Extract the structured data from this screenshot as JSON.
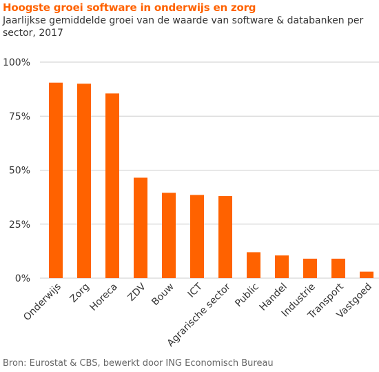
{
  "header": {
    "title": "Hoogste groei software in onderwijs en zorg",
    "subtitle": "Jaarlijkse gemiddelde groei van de waarde van software & databanken per sector, 2017"
  },
  "footer": {
    "source": "Bron: Eurostat & CBS, bewerkt door ING Economisch Bureau"
  },
  "colors": {
    "bar": "#ff6200",
    "title": "#ff6200"
  },
  "chart_data": {
    "type": "bar",
    "categories": [
      "Onderwijs",
      "Zorg",
      "Horeca",
      "ZDV",
      "Bouw",
      "ICT",
      "Agrarische sector",
      "Public",
      "Handel",
      "Industrie",
      "Transport",
      "Vastgoed"
    ],
    "values": [
      90.5,
      90,
      85.5,
      46.5,
      39.5,
      38.5,
      38,
      12,
      10.5,
      9,
      9,
      3
    ],
    "yticks": [
      "0%",
      "25%",
      "50%",
      "75%",
      "100%"
    ],
    "ylim": [
      0,
      100
    ],
    "grid": true,
    "legend": "none"
  }
}
